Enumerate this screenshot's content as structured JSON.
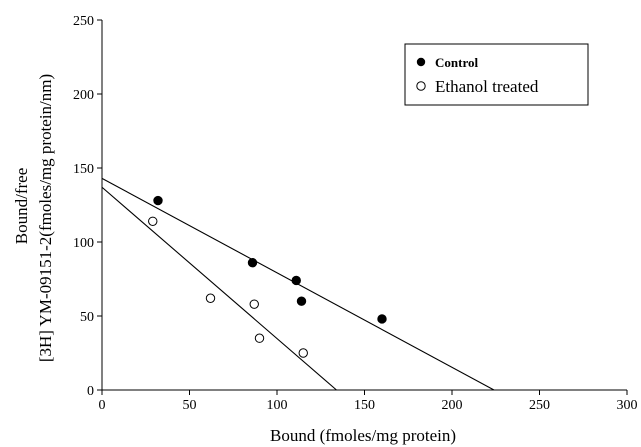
{
  "chart_data": {
    "type": "scatter",
    "xlabel": "Bound (fmoles/mg protein)",
    "ylabel_lines": [
      "Bound/free",
      "[3H] YM-09151-2(fmoles/mg protein/nm)"
    ],
    "xlim": [
      0,
      300
    ],
    "ylim": [
      0,
      250
    ],
    "x_ticks": [
      0,
      50,
      100,
      150,
      200,
      250,
      300
    ],
    "y_ticks": [
      0,
      50,
      100,
      150,
      200,
      250
    ],
    "grid": false,
    "legend_position": "top-right",
    "series": [
      {
        "name": "Control",
        "marker": "filled-circle",
        "points": [
          [
            32,
            128
          ],
          [
            86,
            86
          ],
          [
            111,
            74
          ],
          [
            114,
            60
          ],
          [
            160,
            48
          ]
        ],
        "fit_line": [
          [
            0,
            143
          ],
          [
            224,
            0
          ]
        ]
      },
      {
        "name": "Ethanol treated",
        "marker": "open-circle",
        "points": [
          [
            29,
            114
          ],
          [
            62,
            62
          ],
          [
            87,
            58
          ],
          [
            90,
            35
          ],
          [
            115,
            25
          ]
        ],
        "fit_line": [
          [
            0,
            137
          ],
          [
            134,
            0
          ]
        ]
      }
    ]
  }
}
